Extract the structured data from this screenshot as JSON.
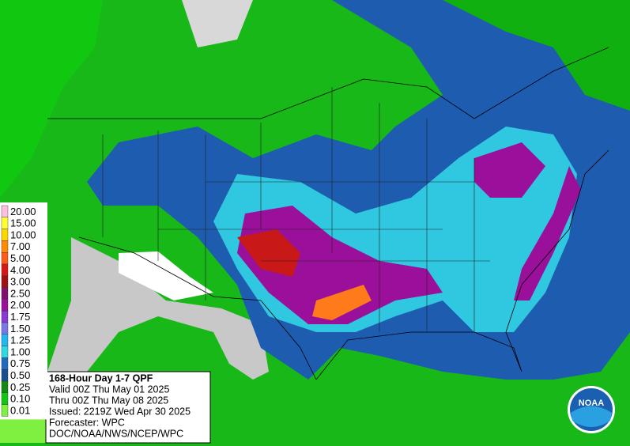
{
  "legend": [
    {
      "label": "20.00",
      "color": "#ffc0e0"
    },
    {
      "label": "15.00",
      "color": "#ffff33"
    },
    {
      "label": "10.00",
      "color": "#ffd700"
    },
    {
      "label": "7.00",
      "color": "#ff8c00"
    },
    {
      "label": "5.00",
      "color": "#ff5a1a"
    },
    {
      "label": "4.00",
      "color": "#d81818"
    },
    {
      "label": "3.00",
      "color": "#a01010"
    },
    {
      "label": "2.50",
      "color": "#80106a"
    },
    {
      "label": "2.00",
      "color": "#9a109a"
    },
    {
      "label": "1.75",
      "color": "#8a38d8"
    },
    {
      "label": "1.50",
      "color": "#7878e8"
    },
    {
      "label": "1.25",
      "color": "#20b8f0"
    },
    {
      "label": "1.00",
      "color": "#30d8e0"
    },
    {
      "label": "0.75",
      "color": "#1e6cc0"
    },
    {
      "label": "0.50",
      "color": "#184e90"
    },
    {
      "label": "0.25",
      "color": "#108a10"
    },
    {
      "label": "0.10",
      "color": "#10c810"
    },
    {
      "label": "0.01",
      "color": "#80f040"
    }
  ],
  "info": {
    "title": "168-Hour Day 1-7 QPF",
    "lines": [
      "Valid 00Z Thu May 01 2025",
      "Thru 00Z Thu May 08 2025",
      "Issued: 2219Z Wed Apr 30 2025",
      "Forecaster: WPC",
      "DOC/NOAA/NWS/NCEP/WPC"
    ]
  },
  "logo": "NOAA"
}
